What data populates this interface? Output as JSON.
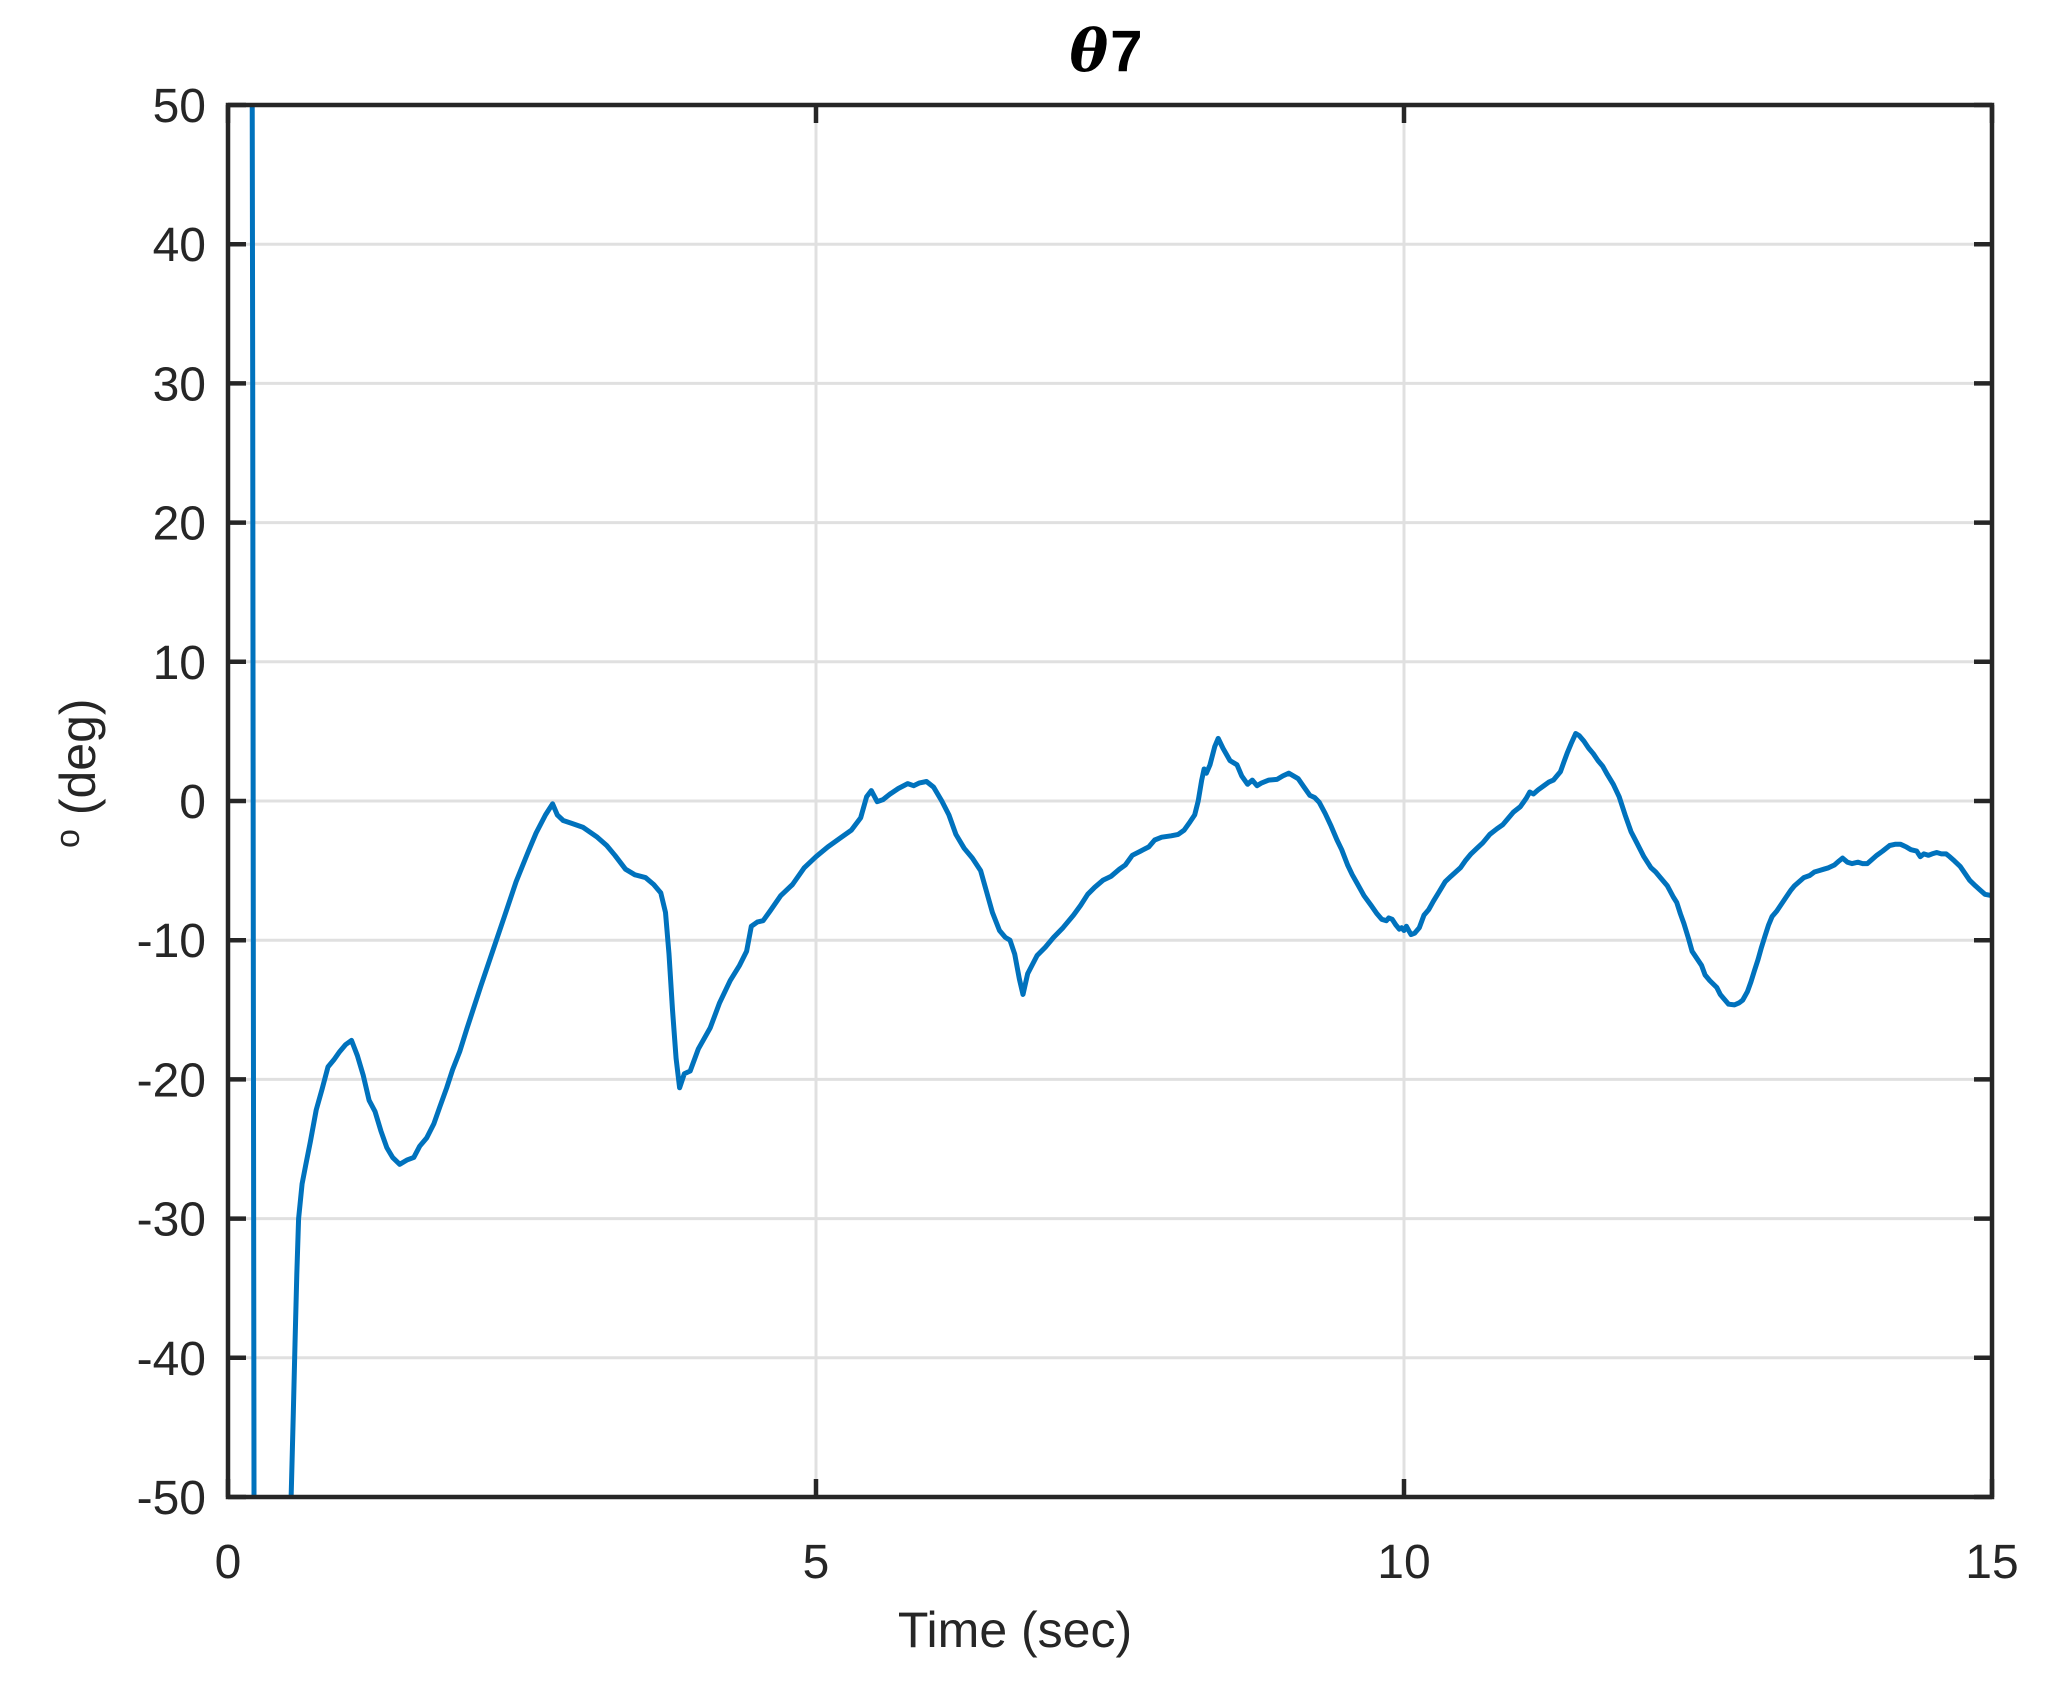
{
  "title": {
    "symbol": "θ",
    "number": "7"
  },
  "colors": {
    "line": "#0072BD",
    "grid": "#E0E0E0",
    "axis": "#262626",
    "tick_label": "#262626",
    "background": "#FFFFFF"
  },
  "axes_text": {
    "xlabel": "Time (sec)",
    "ylabel_sup": "o",
    "ylabel_rest": " (deg)"
  },
  "chart_data": {
    "type": "line",
    "title": "θ7",
    "xlabel": "Time (sec)",
    "ylabel": "° (deg)",
    "xlim": [
      0,
      15
    ],
    "ylim": [
      -50,
      50
    ],
    "xticks": [
      0,
      5,
      10,
      15
    ],
    "yticks": [
      50,
      40,
      30,
      20,
      10,
      0,
      -10,
      -20,
      -30,
      -40,
      -50
    ],
    "grid": true,
    "legend_position": "none",
    "series": [
      {
        "name": "theta7",
        "color": "#0072BD",
        "points": [
          [
            0.205,
            55
          ],
          [
            0.21,
            30
          ],
          [
            0.215,
            -10
          ],
          [
            0.222,
            -55
          ],
          [
            0.52,
            -55
          ],
          [
            0.54,
            -49
          ],
          [
            0.555,
            -44
          ],
          [
            0.57,
            -39
          ],
          [
            0.585,
            -34
          ],
          [
            0.6,
            -30
          ],
          [
            0.63,
            -27.5
          ],
          [
            0.66,
            -26.2
          ],
          [
            0.7,
            -24.5
          ],
          [
            0.75,
            -22.2
          ],
          [
            0.8,
            -20.7
          ],
          [
            0.85,
            -19.1
          ],
          [
            0.9,
            -18.6
          ],
          [
            0.95,
            -18.0
          ],
          [
            1.0,
            -17.5
          ],
          [
            1.05,
            -17.2
          ],
          [
            1.1,
            -18.3
          ],
          [
            1.15,
            -19.7
          ],
          [
            1.2,
            -21.5
          ],
          [
            1.25,
            -22.3
          ],
          [
            1.3,
            -23.7
          ],
          [
            1.35,
            -24.9
          ],
          [
            1.4,
            -25.6
          ],
          [
            1.46,
            -26.1
          ],
          [
            1.52,
            -25.8
          ],
          [
            1.58,
            -25.6
          ],
          [
            1.63,
            -24.8
          ],
          [
            1.69,
            -24.2
          ],
          [
            1.75,
            -23.2
          ],
          [
            1.8,
            -22.0
          ],
          [
            1.86,
            -20.6
          ],
          [
            1.91,
            -19.3
          ],
          [
            1.97,
            -18.0
          ],
          [
            2.03,
            -16.4
          ],
          [
            2.08,
            -15.1
          ],
          [
            2.15,
            -13.3
          ],
          [
            2.25,
            -10.8
          ],
          [
            2.35,
            -8.3
          ],
          [
            2.45,
            -5.8
          ],
          [
            2.55,
            -3.7
          ],
          [
            2.62,
            -2.3
          ],
          [
            2.7,
            -1.0
          ],
          [
            2.76,
            -0.2
          ],
          [
            2.8,
            -1.0
          ],
          [
            2.85,
            -1.4
          ],
          [
            2.92,
            -1.6
          ],
          [
            3.02,
            -1.9
          ],
          [
            3.14,
            -2.6
          ],
          [
            3.22,
            -3.2
          ],
          [
            3.29,
            -3.9
          ],
          [
            3.38,
            -4.9
          ],
          [
            3.46,
            -5.3
          ],
          [
            3.55,
            -5.5
          ],
          [
            3.62,
            -6.0
          ],
          [
            3.68,
            -6.6
          ],
          [
            3.72,
            -8.0
          ],
          [
            3.75,
            -11.0
          ],
          [
            3.78,
            -15.0
          ],
          [
            3.81,
            -18.5
          ],
          [
            3.84,
            -20.6
          ],
          [
            3.88,
            -19.6
          ],
          [
            3.93,
            -19.4
          ],
          [
            4.0,
            -17.8
          ],
          [
            4.1,
            -16.3
          ],
          [
            4.18,
            -14.5
          ],
          [
            4.27,
            -12.9
          ],
          [
            4.35,
            -11.8
          ],
          [
            4.41,
            -10.8
          ],
          [
            4.45,
            -9.0
          ],
          [
            4.5,
            -8.7
          ],
          [
            4.55,
            -8.6
          ],
          [
            4.61,
            -7.9
          ],
          [
            4.7,
            -6.8
          ],
          [
            4.8,
            -6.0
          ],
          [
            4.9,
            -4.8
          ],
          [
            5.0,
            -4.0
          ],
          [
            5.1,
            -3.3
          ],
          [
            5.2,
            -2.7
          ],
          [
            5.3,
            -2.1
          ],
          [
            5.38,
            -1.2
          ],
          [
            5.43,
            0.3
          ],
          [
            5.47,
            0.75
          ],
          [
            5.52,
            -0.05
          ],
          [
            5.57,
            0.1
          ],
          [
            5.63,
            0.5
          ],
          [
            5.7,
            0.9
          ],
          [
            5.78,
            1.25
          ],
          [
            5.83,
            1.1
          ],
          [
            5.88,
            1.3
          ],
          [
            5.94,
            1.4
          ],
          [
            6.0,
            1.0
          ],
          [
            6.07,
            0.0
          ],
          [
            6.13,
            -1.0
          ],
          [
            6.19,
            -2.4
          ],
          [
            6.26,
            -3.4
          ],
          [
            6.33,
            -4.1
          ],
          [
            6.4,
            -5.0
          ],
          [
            6.45,
            -6.5
          ],
          [
            6.5,
            -8.0
          ],
          [
            6.56,
            -9.3
          ],
          [
            6.61,
            -9.8
          ],
          [
            6.65,
            -10.0
          ],
          [
            6.69,
            -11.0
          ],
          [
            6.73,
            -12.8
          ],
          [
            6.76,
            -13.9
          ],
          [
            6.8,
            -12.4
          ],
          [
            6.88,
            -11.1
          ],
          [
            6.95,
            -10.5
          ],
          [
            7.02,
            -9.8
          ],
          [
            7.1,
            -9.1
          ],
          [
            7.19,
            -8.2
          ],
          [
            7.25,
            -7.5
          ],
          [
            7.31,
            -6.7
          ],
          [
            7.37,
            -6.2
          ],
          [
            7.44,
            -5.7
          ],
          [
            7.51,
            -5.4
          ],
          [
            7.58,
            -4.9
          ],
          [
            7.63,
            -4.6
          ],
          [
            7.69,
            -3.9
          ],
          [
            7.76,
            -3.6
          ],
          [
            7.83,
            -3.3
          ],
          [
            7.88,
            -2.8
          ],
          [
            7.94,
            -2.6
          ],
          [
            8.02,
            -2.5
          ],
          [
            8.08,
            -2.4
          ],
          [
            8.13,
            -2.1
          ],
          [
            8.18,
            -1.5
          ],
          [
            8.22,
            -1.0
          ],
          [
            8.25,
            0.0
          ],
          [
            8.28,
            1.5
          ],
          [
            8.3,
            2.3
          ],
          [
            8.32,
            2.0
          ],
          [
            8.35,
            2.6
          ],
          [
            8.39,
            3.9
          ],
          [
            8.42,
            4.5
          ],
          [
            8.46,
            3.8
          ],
          [
            8.52,
            2.9
          ],
          [
            8.58,
            2.6
          ],
          [
            8.62,
            1.8
          ],
          [
            8.67,
            1.2
          ],
          [
            8.71,
            1.5
          ],
          [
            8.75,
            1.1
          ],
          [
            8.79,
            1.3
          ],
          [
            8.85,
            1.5
          ],
          [
            8.92,
            1.55
          ],
          [
            8.97,
            1.8
          ],
          [
            9.02,
            2.0
          ],
          [
            9.06,
            1.8
          ],
          [
            9.1,
            1.6
          ],
          [
            9.15,
            1.0
          ],
          [
            9.2,
            0.4
          ],
          [
            9.24,
            0.25
          ],
          [
            9.28,
            -0.1
          ],
          [
            9.33,
            -0.9
          ],
          [
            9.38,
            -1.8
          ],
          [
            9.43,
            -2.8
          ],
          [
            9.47,
            -3.5
          ],
          [
            9.52,
            -4.6
          ],
          [
            9.56,
            -5.3
          ],
          [
            9.6,
            -5.9
          ],
          [
            9.66,
            -6.8
          ],
          [
            9.72,
            -7.5
          ],
          [
            9.77,
            -8.1
          ],
          [
            9.81,
            -8.5
          ],
          [
            9.85,
            -8.6
          ],
          [
            9.87,
            -8.4
          ],
          [
            9.9,
            -8.5
          ],
          [
            9.93,
            -8.9
          ],
          [
            9.96,
            -9.2
          ],
          [
            9.98,
            -9.1
          ],
          [
            10.0,
            -9.3
          ],
          [
            10.02,
            -9.0
          ],
          [
            10.04,
            -9.3
          ],
          [
            10.06,
            -9.6
          ],
          [
            10.09,
            -9.5
          ],
          [
            10.13,
            -9.1
          ],
          [
            10.17,
            -8.2
          ],
          [
            10.21,
            -7.8
          ],
          [
            10.25,
            -7.2
          ],
          [
            10.3,
            -6.5
          ],
          [
            10.35,
            -5.8
          ],
          [
            10.4,
            -5.4
          ],
          [
            10.44,
            -5.1
          ],
          [
            10.48,
            -4.8
          ],
          [
            10.52,
            -4.3
          ],
          [
            10.57,
            -3.8
          ],
          [
            10.62,
            -3.4
          ],
          [
            10.67,
            -3.0
          ],
          [
            10.73,
            -2.4
          ],
          [
            10.79,
            -2.0
          ],
          [
            10.84,
            -1.7
          ],
          [
            10.88,
            -1.3
          ],
          [
            10.93,
            -0.8
          ],
          [
            10.99,
            -0.4
          ],
          [
            11.04,
            0.2
          ],
          [
            11.07,
            0.65
          ],
          [
            11.1,
            0.5
          ],
          [
            11.14,
            0.8
          ],
          [
            11.19,
            1.1
          ],
          [
            11.23,
            1.35
          ],
          [
            11.27,
            1.5
          ],
          [
            11.3,
            1.8
          ],
          [
            11.33,
            2.1
          ],
          [
            11.36,
            2.8
          ],
          [
            11.39,
            3.5
          ],
          [
            11.42,
            4.1
          ],
          [
            11.46,
            4.85
          ],
          [
            11.49,
            4.7
          ],
          [
            11.53,
            4.3
          ],
          [
            11.57,
            3.8
          ],
          [
            11.61,
            3.4
          ],
          [
            11.65,
            2.9
          ],
          [
            11.69,
            2.5
          ],
          [
            11.73,
            1.9
          ],
          [
            11.78,
            1.2
          ],
          [
            11.83,
            0.3
          ],
          [
            11.88,
            -1.0
          ],
          [
            11.93,
            -2.2
          ],
          [
            11.98,
            -3.0
          ],
          [
            12.04,
            -4.0
          ],
          [
            12.1,
            -4.8
          ],
          [
            12.14,
            -5.1
          ],
          [
            12.18,
            -5.5
          ],
          [
            12.24,
            -6.1
          ],
          [
            12.29,
            -6.9
          ],
          [
            12.32,
            -7.3
          ],
          [
            12.35,
            -8.1
          ],
          [
            12.38,
            -8.8
          ],
          [
            12.42,
            -9.9
          ],
          [
            12.45,
            -10.8
          ],
          [
            12.49,
            -11.3
          ],
          [
            12.53,
            -11.8
          ],
          [
            12.56,
            -12.5
          ],
          [
            12.6,
            -12.9
          ],
          [
            12.66,
            -13.4
          ],
          [
            12.69,
            -13.9
          ],
          [
            12.72,
            -14.2
          ],
          [
            12.76,
            -14.6
          ],
          [
            12.81,
            -14.65
          ],
          [
            12.85,
            -14.5
          ],
          [
            12.88,
            -14.3
          ],
          [
            12.92,
            -13.7
          ],
          [
            12.95,
            -13.0
          ],
          [
            12.98,
            -12.2
          ],
          [
            13.01,
            -11.4
          ],
          [
            13.04,
            -10.5
          ],
          [
            13.07,
            -9.7
          ],
          [
            13.1,
            -8.9
          ],
          [
            13.13,
            -8.3
          ],
          [
            13.17,
            -7.9
          ],
          [
            13.21,
            -7.4
          ],
          [
            13.25,
            -6.9
          ],
          [
            13.29,
            -6.4
          ],
          [
            13.32,
            -6.1
          ],
          [
            13.36,
            -5.8
          ],
          [
            13.4,
            -5.5
          ],
          [
            13.45,
            -5.35
          ],
          [
            13.49,
            -5.1
          ],
          [
            13.53,
            -5.0
          ],
          [
            13.57,
            -4.9
          ],
          [
            13.61,
            -4.8
          ],
          [
            13.66,
            -4.6
          ],
          [
            13.7,
            -4.3
          ],
          [
            13.73,
            -4.1
          ],
          [
            13.77,
            -4.4
          ],
          [
            13.81,
            -4.5
          ],
          [
            13.86,
            -4.4
          ],
          [
            13.9,
            -4.5
          ],
          [
            13.94,
            -4.5
          ],
          [
            13.98,
            -4.2
          ],
          [
            14.02,
            -3.9
          ],
          [
            14.07,
            -3.6
          ],
          [
            14.13,
            -3.2
          ],
          [
            14.18,
            -3.1
          ],
          [
            14.22,
            -3.1
          ],
          [
            14.27,
            -3.3
          ],
          [
            14.31,
            -3.5
          ],
          [
            14.36,
            -3.6
          ],
          [
            14.39,
            -4.0
          ],
          [
            14.42,
            -3.8
          ],
          [
            14.46,
            -3.9
          ],
          [
            14.49,
            -3.8
          ],
          [
            14.53,
            -3.7
          ],
          [
            14.57,
            -3.8
          ],
          [
            14.61,
            -3.8
          ],
          [
            14.64,
            -4.0
          ],
          [
            14.68,
            -4.3
          ],
          [
            14.73,
            -4.7
          ],
          [
            14.77,
            -5.2
          ],
          [
            14.81,
            -5.7
          ],
          [
            14.86,
            -6.1
          ],
          [
            14.9,
            -6.4
          ],
          [
            14.94,
            -6.7
          ],
          [
            15.0,
            -6.8
          ]
        ]
      }
    ]
  }
}
